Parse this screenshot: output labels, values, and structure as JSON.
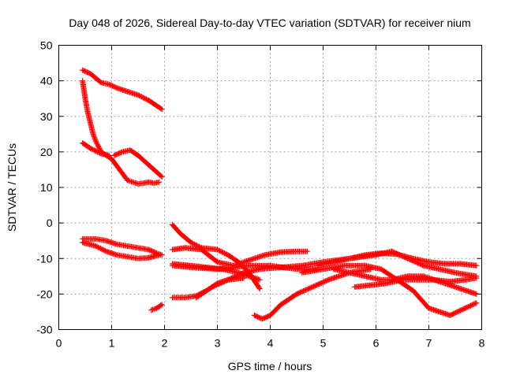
{
  "chart_data": {
    "type": "scatter",
    "title": "Day 048 of 2026, Sidereal Day-to-day VTEC variation (SDTVAR) for receiver nium",
    "xlabel": "GPS time / hours",
    "ylabel": "SDTVAR / TECUs",
    "xlim": [
      0,
      8
    ],
    "ylim": [
      -30,
      50
    ],
    "xticks": [
      0,
      1,
      2,
      3,
      4,
      5,
      6,
      7,
      8
    ],
    "yticks": [
      -30,
      -20,
      -10,
      0,
      10,
      20,
      30,
      40,
      50
    ],
    "grid": true,
    "marker": "plus",
    "color": "#ff0000",
    "series": [
      {
        "x": [
          0.45,
          0.6,
          0.8,
          0.95,
          1.1,
          1.3,
          1.5,
          1.7,
          1.85,
          1.95
        ],
        "y": [
          43,
          42,
          39.5,
          39,
          38,
          37,
          36,
          34.5,
          33,
          32
        ]
      },
      {
        "x": [
          0.45,
          0.5,
          0.55,
          0.6,
          0.65,
          0.7,
          0.8,
          0.9,
          1.0,
          1.1,
          1.2,
          1.3,
          1.4,
          1.5,
          1.6,
          1.7,
          1.8,
          1.9
        ],
        "y": [
          40,
          35,
          31,
          28,
          25,
          23,
          20,
          19,
          18,
          16,
          14,
          12,
          11.5,
          11,
          11.2,
          11.5,
          11.2,
          11.5
        ]
      },
      {
        "x": [
          0.45,
          0.6,
          0.8,
          0.95
        ],
        "y": [
          22.5,
          21,
          19.5,
          19
        ]
      },
      {
        "x": [
          1.05,
          1.2,
          1.35,
          1.5,
          1.65,
          1.8,
          1.95
        ],
        "y": [
          19,
          20,
          20.5,
          19,
          17,
          15,
          13
        ]
      },
      {
        "x": [
          0.45,
          0.7,
          0.9,
          1.1,
          1.3,
          1.5,
          1.7,
          1.85,
          1.95
        ],
        "y": [
          -4.5,
          -4.5,
          -5,
          -6,
          -6.5,
          -7,
          -7.5,
          -8.5,
          -9
        ]
      },
      {
        "x": [
          0.45,
          0.7,
          0.9,
          1.1,
          1.3,
          1.5,
          1.7,
          1.9
        ],
        "y": [
          -5.5,
          -6.5,
          -8,
          -9,
          -9.5,
          -10,
          -9.8,
          -9
        ]
      },
      {
        "x": [
          1.75,
          1.85,
          1.95
        ],
        "y": [
          -24.5,
          -24,
          -23
        ]
      },
      {
        "x": [
          2.15,
          2.3,
          2.5,
          2.7,
          3.0,
          3.2,
          3.4,
          3.6,
          3.8
        ],
        "y": [
          -0.5,
          -3,
          -5.5,
          -7,
          -7.5,
          -9,
          -11,
          -14,
          -18.5
        ]
      },
      {
        "x": [
          2.15,
          2.4,
          2.7,
          3.0,
          3.3,
          3.6,
          3.9,
          4.2,
          4.5,
          4.7
        ],
        "y": [
          -7.5,
          -7,
          -7.5,
          -11,
          -12,
          -10.5,
          -9,
          -8.2,
          -8,
          -8
        ]
      },
      {
        "x": [
          2.15,
          2.4,
          2.6,
          2.8,
          3.0,
          3.2,
          3.5
        ],
        "y": [
          -21,
          -21,
          -20.5,
          -19,
          -17,
          -16,
          -15.5
        ]
      },
      {
        "x": [
          2.15,
          2.5,
          2.8,
          3.1,
          3.4,
          3.6,
          3.8
        ],
        "y": [
          -11.5,
          -12,
          -12.5,
          -13,
          -14,
          -15,
          -16
        ]
      },
      {
        "x": [
          2.15,
          2.5,
          3.0,
          3.3,
          3.6,
          4.0,
          4.5,
          4.9
        ],
        "y": [
          -12,
          -12.5,
          -13,
          -12.5,
          -12,
          -12,
          -13,
          -13
        ]
      },
      {
        "x": [
          2.6,
          2.9,
          3.2,
          3.5,
          3.8,
          4.2,
          4.6,
          5.0,
          5.5,
          6.0,
          6.3
        ],
        "y": [
          -21,
          -18,
          -16,
          -14,
          -13,
          -12.5,
          -12,
          -11,
          -10,
          -9,
          -8
        ]
      },
      {
        "x": [
          3.7,
          3.85,
          4.0,
          4.2,
          4.5,
          4.8,
          5.1,
          5.5,
          5.9
        ],
        "y": [
          -26,
          -27,
          -26,
          -23,
          -20,
          -18,
          -16,
          -14,
          -13
        ]
      },
      {
        "x": [
          4.9,
          5.2,
          5.5,
          5.8,
          6.1,
          6.4,
          6.7,
          7.0,
          7.3,
          7.6,
          7.9
        ],
        "y": [
          -12,
          -11,
          -10,
          -9,
          -8.5,
          -8.8,
          -10,
          -11,
          -11.5,
          -11.5,
          -12
        ]
      },
      {
        "x": [
          4.6,
          5.0,
          5.4,
          5.8,
          6.1,
          6.4,
          6.7,
          7.0,
          7.4,
          7.9
        ],
        "y": [
          -14,
          -13,
          -12,
          -12,
          -13,
          -16,
          -19,
          -24,
          -26,
          -22.5
        ]
      },
      {
        "x": [
          5.6,
          5.9,
          6.2,
          6.5,
          6.8,
          7.1,
          7.4,
          7.7,
          7.9
        ],
        "y": [
          -18,
          -17.5,
          -17,
          -16,
          -16,
          -16,
          -16.5,
          -16,
          -15.5
        ]
      },
      {
        "x": [
          5.2,
          5.5,
          5.8,
          6.1,
          6.3,
          6.6,
          6.9,
          7.2,
          7.5,
          7.9
        ],
        "y": [
          -13,
          -14,
          -15,
          -16,
          -16,
          -15,
          -15,
          -16.5,
          -18,
          -20
        ]
      },
      {
        "x": [
          6.3,
          6.6,
          6.9,
          7.2,
          7.5,
          7.9
        ],
        "y": [
          -8,
          -10,
          -12,
          -13,
          -14,
          -15
        ]
      }
    ]
  }
}
